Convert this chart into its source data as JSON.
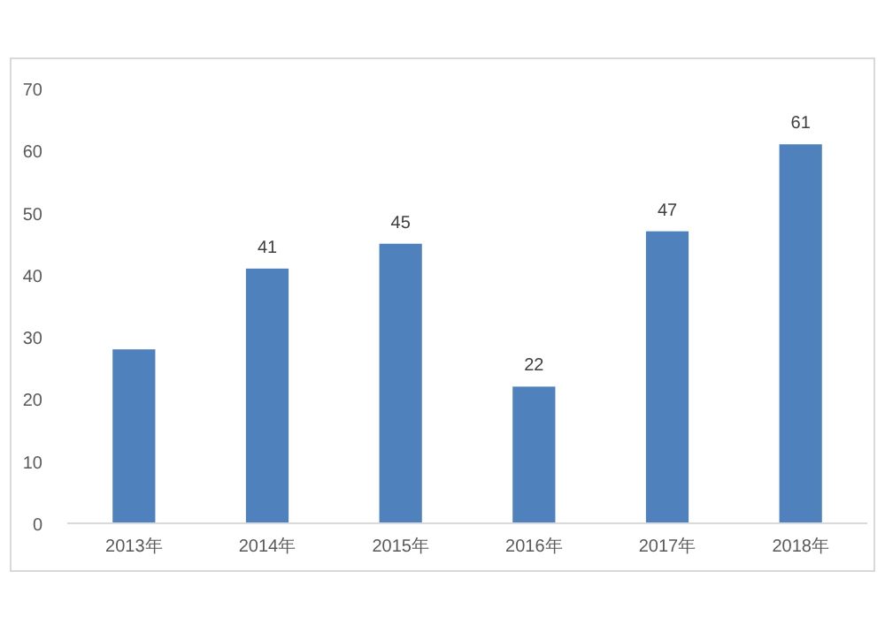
{
  "chart_data": {
    "type": "bar",
    "categories": [
      "2013年",
      "2014年",
      "2015年",
      "2016年",
      "2017年",
      "2018年"
    ],
    "values": [
      28,
      41,
      45,
      22,
      47,
      61
    ],
    "value_labels": [
      null,
      "41",
      "45",
      "22",
      "47",
      "61"
    ],
    "color": "#4f81bd",
    "ylim": [
      0,
      70
    ],
    "yticks": [
      0,
      10,
      20,
      30,
      40,
      50,
      60,
      70
    ],
    "grid": false
  }
}
